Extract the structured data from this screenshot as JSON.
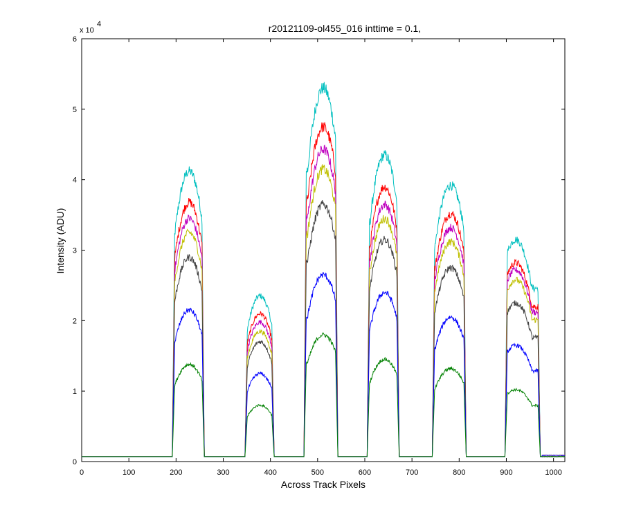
{
  "chart_data": {
    "type": "line",
    "title": "r20121109-ol455_016 inttime = 0.1,",
    "xlabel": "Across Track Pixels",
    "ylabel": "Intensity (ADU)",
    "y_multiplier_base": "x 10",
    "y_multiplier_exp": "4",
    "xlim": [
      0,
      1024
    ],
    "ylim": [
      0,
      60000
    ],
    "xticks": [
      0,
      100,
      200,
      300,
      400,
      500,
      600,
      700,
      800,
      900,
      1000
    ],
    "yticks": [
      0,
      10000,
      20000,
      30000,
      40000,
      50000,
      60000
    ],
    "yticklabels": [
      "0",
      "1",
      "2",
      "3",
      "4",
      "5",
      "6"
    ],
    "grid": false,
    "baseline": 700,
    "segments": [
      {
        "start": 197,
        "end": 255,
        "peak_x": 228
      },
      {
        "start": 351,
        "end": 403,
        "peak_x": 378
      },
      {
        "start": 476,
        "end": 538,
        "peak_x": 512
      },
      {
        "start": 610,
        "end": 668,
        "peak_x": 642
      },
      {
        "start": 748,
        "end": 810,
        "peak_x": 782
      },
      {
        "start": 902,
        "end": 967,
        "peak_x": 920
      }
    ],
    "series": [
      {
        "color": "#00bfbf",
        "peaks": [
          41200,
          23500,
          53000,
          43500,
          39200,
          31500
        ]
      },
      {
        "color": "#ff0000",
        "peaks": [
          36800,
          21000,
          47500,
          39000,
          35200,
          28200
        ]
      },
      {
        "color": "#bf00bf",
        "peaks": [
          34500,
          19800,
          44300,
          36500,
          33200,
          27200
        ]
      },
      {
        "color": "#bfbf00",
        "peaks": [
          32500,
          18500,
          41500,
          34500,
          31200,
          25800
        ]
      },
      {
        "color": "#404040",
        "peaks": [
          29000,
          17000,
          36500,
          31500,
          27500,
          22500
        ]
      },
      {
        "color": "#0000ff",
        "peaks": [
          21500,
          12500,
          26500,
          24000,
          20500,
          16500
        ]
      },
      {
        "color": "#008000",
        "peaks": [
          13800,
          8000,
          18000,
          14500,
          13200,
          10200
        ]
      }
    ]
  }
}
